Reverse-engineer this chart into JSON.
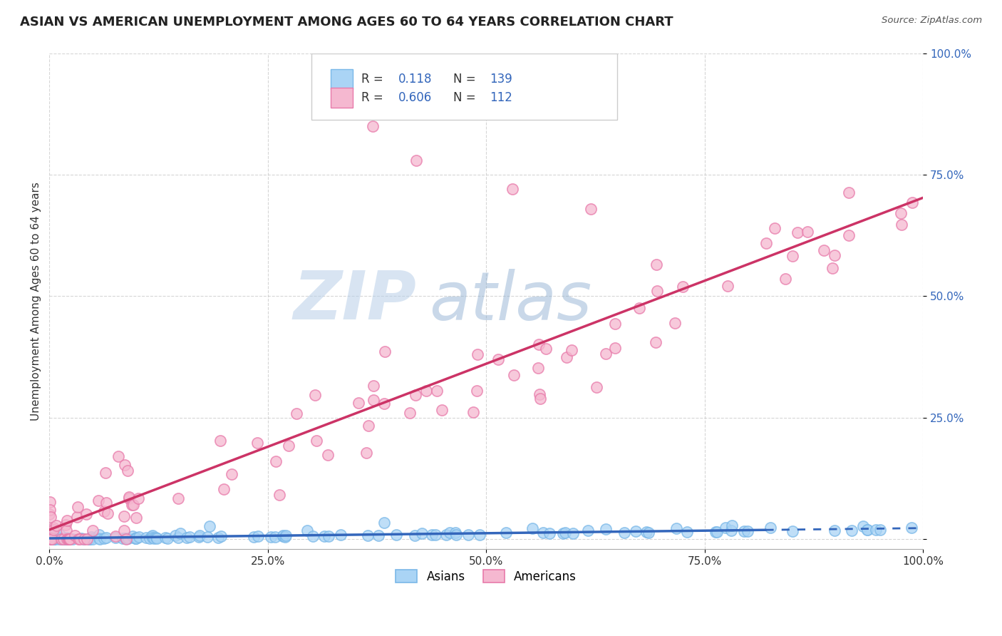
{
  "title": "ASIAN VS AMERICAN UNEMPLOYMENT AMONG AGES 60 TO 64 YEARS CORRELATION CHART",
  "source": "Source: ZipAtlas.com",
  "ylabel": "Unemployment Among Ages 60 to 64 years",
  "xlim": [
    0,
    1.0
  ],
  "ylim": [
    -0.02,
    1.0
  ],
  "xtick_vals": [
    0.0,
    0.25,
    0.5,
    0.75,
    1.0
  ],
  "xticklabels": [
    "0.0%",
    "25.0%",
    "50.0%",
    "75.0%",
    "100.0%"
  ],
  "ytick_vals": [
    0.0,
    0.25,
    0.5,
    0.75,
    1.0
  ],
  "yticklabels": [
    "",
    "25.0%",
    "50.0%",
    "75.0%",
    "100.0%"
  ],
  "background_color": "#ffffff",
  "grid_color": "#cccccc",
  "watermark_zip": "ZIP",
  "watermark_atlas": "atlas",
  "asian_color": "#aad4f5",
  "asian_edge_color": "#7ab8e8",
  "american_color": "#f5b8d0",
  "american_edge_color": "#e87aaa",
  "asian_line_color": "#3366bb",
  "american_line_color": "#cc3366",
  "asian_R": 0.118,
  "asian_N": 139,
  "american_R": 0.606,
  "american_N": 112,
  "title_fontsize": 13,
  "label_fontsize": 11,
  "tick_fontsize": 11,
  "legend_fontsize": 12,
  "legend_label_color": "#333333",
  "legend_value_color": "#3366bb",
  "source_color": "#555555"
}
